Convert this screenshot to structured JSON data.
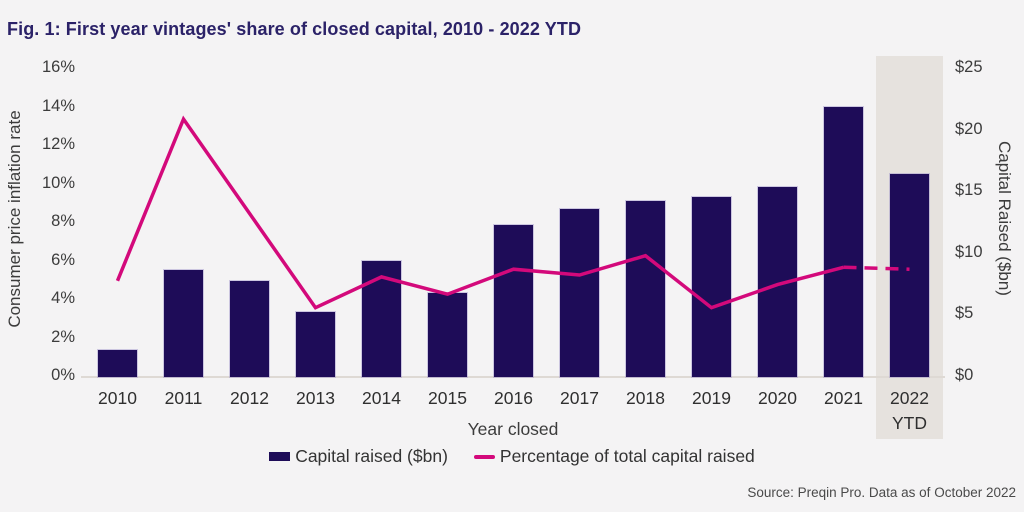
{
  "figure": {
    "title": "Fig. 1: First year vintages' share of closed capital, 2010 - 2022 YTD",
    "source": "Source: Preqin Pro. Data as of October 2022"
  },
  "chart_data": {
    "type": "bar",
    "subtype": "bar+line combo, dual axis",
    "title": "Fig. 1: First year vintages' share of closed capital, 2010 - 2022 YTD",
    "categories": [
      "2010",
      "2011",
      "2012",
      "2013",
      "2014",
      "2015",
      "2016",
      "2017",
      "2018",
      "2019",
      "2020",
      "2021",
      "2022 YTD"
    ],
    "series": [
      {
        "name": "Capital raised ($bn)",
        "type": "bar",
        "axis": "right",
        "color": "#1E0C58",
        "values": [
          2.2,
          8.7,
          7.8,
          5.3,
          9.4,
          6.8,
          12.3,
          13.6,
          14.3,
          14.6,
          15.4,
          21.9,
          16.5
        ]
      },
      {
        "name": "Percentage of total capital raised",
        "type": "line",
        "axis": "left",
        "color": "#D3097B",
        "values": [
          5.0,
          13.4,
          8.5,
          3.6,
          5.2,
          4.3,
          5.6,
          5.3,
          6.3,
          3.6,
          4.8,
          5.7,
          5.6
        ],
        "dashed_from_index": 11
      }
    ],
    "left_axis": {
      "label": "Consumer price inflation rate",
      "ticks": [
        "0%",
        "2%",
        "4%",
        "6%",
        "8%",
        "10%",
        "12%",
        "14%",
        "16%"
      ],
      "min": 0,
      "max": 16
    },
    "right_axis": {
      "label": "Capital Raised ($bn)",
      "ticks": [
        "$0",
        "$5",
        "$10",
        "$15",
        "$20",
        "$25"
      ],
      "min": 0,
      "max": 25
    },
    "x_axis": {
      "label": "Year closed",
      "highlighted_category": "2022 YTD"
    },
    "legend_position": "bottom-center",
    "grid": "off",
    "highlight_band_color": "#E6E2DE",
    "background_color": "#F4F3F4"
  }
}
